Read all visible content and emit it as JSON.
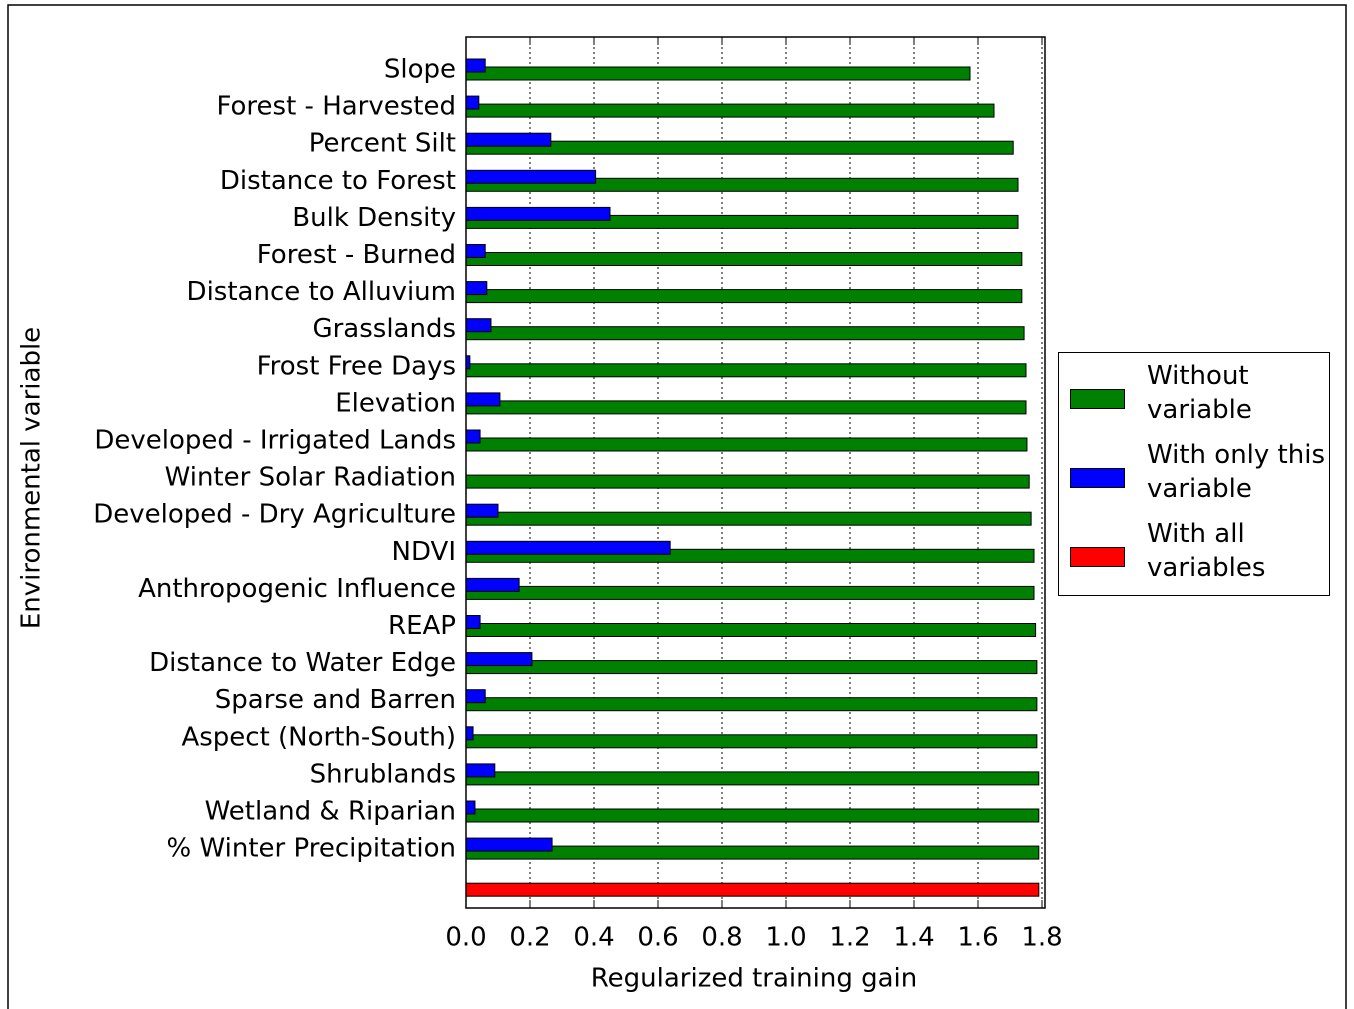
{
  "chart_data": {
    "type": "bar",
    "xlabel": "Regularized training gain",
    "ylabel": "Environmental variable",
    "categories": [
      "Slope",
      "Forest - Harvested",
      "Percent Silt",
      "Distance to Forest",
      "Bulk Density",
      "Forest - Burned",
      "Distance to Alluvium",
      "Grasslands",
      "Frost Free Days",
      "Elevation",
      "Developed - Irrigated Lands",
      "Winter Solar Radiation",
      "Developed - Dry Agriculture",
      "NDVI",
      "Anthropogenic Influence",
      "REAP",
      "Distance to Water Edge",
      "Sparse and Barren",
      "Aspect (North-South)",
      "Shrublands",
      "Wetland & Riparian",
      "% Winter Precipitation",
      null
    ],
    "series": [
      {
        "name": "Without variable",
        "color": "#008000",
        "values": [
          1.575,
          1.65,
          1.71,
          1.725,
          1.725,
          1.737,
          1.737,
          1.744,
          1.75,
          1.75,
          1.753,
          1.76,
          1.766,
          1.775,
          1.775,
          1.78,
          1.784,
          1.784,
          1.784,
          1.79,
          1.79,
          1.79,
          null
        ]
      },
      {
        "name": "With only this variable",
        "color": "#0000ff",
        "values": [
          0.06,
          0.04,
          0.265,
          0.405,
          0.45,
          0.06,
          0.065,
          0.078,
          0.012,
          0.106,
          0.044,
          0,
          0.1,
          0.638,
          0.166,
          0.044,
          0.206,
          0.06,
          0.022,
          0.09,
          0.028,
          0.269,
          null
        ]
      },
      {
        "name": "With all variables",
        "color": "#ff0000",
        "values": [
          null,
          null,
          null,
          null,
          null,
          null,
          null,
          null,
          null,
          null,
          null,
          null,
          null,
          null,
          null,
          null,
          null,
          null,
          null,
          null,
          null,
          null,
          1.79
        ]
      }
    ],
    "xlim": [
      0,
      1.8
    ],
    "xticks": [
      {
        "value": 0,
        "label": "0.0"
      },
      0.2,
      0.4,
      0.6,
      0.8,
      {
        "value": 1,
        "label": "1.0"
      },
      1.2,
      1.4,
      1.6,
      1.8
    ],
    "grid": true,
    "legend": "right"
  }
}
